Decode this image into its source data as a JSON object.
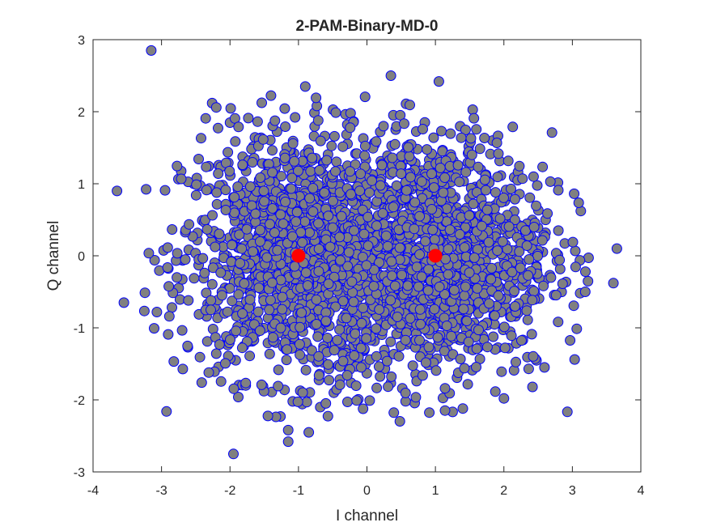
{
  "chart_data": {
    "type": "scatter",
    "title": "2-PAM-Binary-MD-0",
    "xlabel": "I channel",
    "ylabel": "Q channel",
    "xlim": [
      -4,
      4
    ],
    "ylim": [
      -3,
      3
    ],
    "xticks": [
      "-4",
      "-3",
      "-2",
      "-1",
      "0",
      "1",
      "2",
      "3",
      "4"
    ],
    "yticks": [
      "-3",
      "-2",
      "-1",
      "0",
      "1",
      "2",
      "3"
    ],
    "grid": false,
    "legend": "none",
    "series": [
      {
        "role": "received-samples",
        "marker": "circle",
        "face_color": "#808080",
        "edge_color": "#0000ff",
        "distribution": "two gaussian clusters centered at I=-1 and I=+1, Q=0, std ~0.85",
        "clusters": [
          {
            "center": [
              -1,
              0
            ],
            "std": 0.85,
            "count": 1400
          },
          {
            "center": [
              1,
              0
            ],
            "std": 0.85,
            "count": 1400
          }
        ],
        "outliers": [
          {
            "x": -3.15,
            "y": 2.85
          },
          {
            "x": -3.65,
            "y": 0.9
          },
          {
            "x": -3.55,
            "y": -0.65
          },
          {
            "x": -1.95,
            "y": -2.75
          },
          {
            "x": -1.15,
            "y": -2.58
          },
          {
            "x": -1.15,
            "y": -2.42
          },
          {
            "x": 3.65,
            "y": 0.1
          },
          {
            "x": 3.6,
            "y": -0.38
          },
          {
            "x": 0.35,
            "y": 2.5
          },
          {
            "x": 1.05,
            "y": 2.42
          },
          {
            "x": -0.9,
            "y": 2.35
          },
          {
            "x": -2.2,
            "y": 2.06
          },
          {
            "x": -0.85,
            "y": -2.45
          },
          {
            "x": -0.6,
            "y": -2.05
          },
          {
            "x": 1.4,
            "y": -2.12
          },
          {
            "x": 2.0,
            "y": -1.98
          }
        ]
      },
      {
        "role": "constellation-points",
        "marker": "circle",
        "color": "#ff0000",
        "points": [
          {
            "x": -1,
            "y": 0
          },
          {
            "x": 1,
            "y": 0
          }
        ]
      }
    ]
  }
}
